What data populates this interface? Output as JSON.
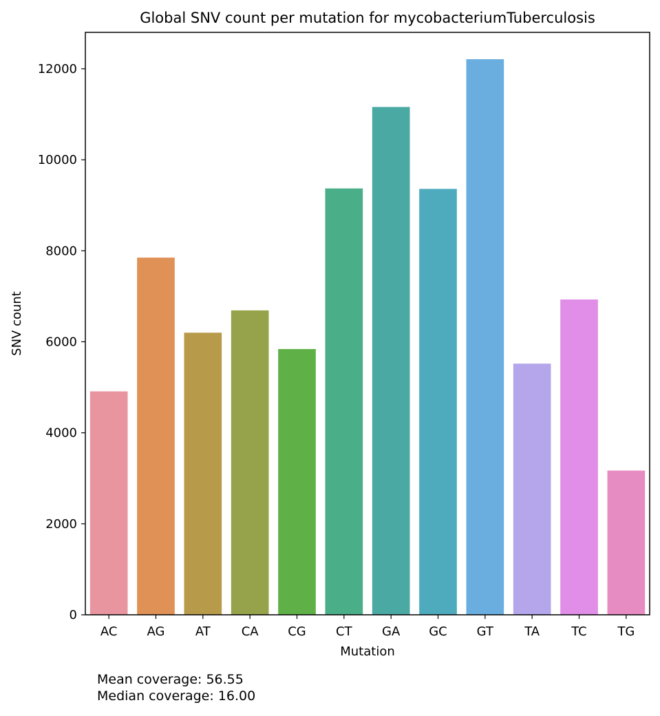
{
  "chart_data": {
    "type": "bar",
    "title": "Global SNV count per mutation for mycobacteriumTuberculosis",
    "xlabel": "Mutation",
    "ylabel": "SNV count",
    "categories": [
      "AC",
      "AG",
      "AT",
      "CA",
      "CG",
      "CT",
      "GA",
      "GC",
      "GT",
      "TA",
      "TC",
      "TG"
    ],
    "values": [
      4910,
      7850,
      6200,
      6690,
      5840,
      9370,
      11160,
      9360,
      12210,
      5520,
      6930,
      3170
    ],
    "colors": [
      "#e8959f",
      "#e09155",
      "#b89b4a",
      "#97a34a",
      "#60b048",
      "#4aaf88",
      "#4aa9a3",
      "#4eabbd",
      "#6aaee0",
      "#b5a6ec",
      "#e08ee7",
      "#e78cc2"
    ],
    "ylim": [
      0,
      12800
    ],
    "yticks": [
      0,
      2000,
      4000,
      6000,
      8000,
      10000,
      12000
    ],
    "grid": false,
    "legend": "none"
  },
  "footnote": {
    "mean": "Mean coverage: 56.55",
    "median": "Median coverage: 16.00"
  }
}
